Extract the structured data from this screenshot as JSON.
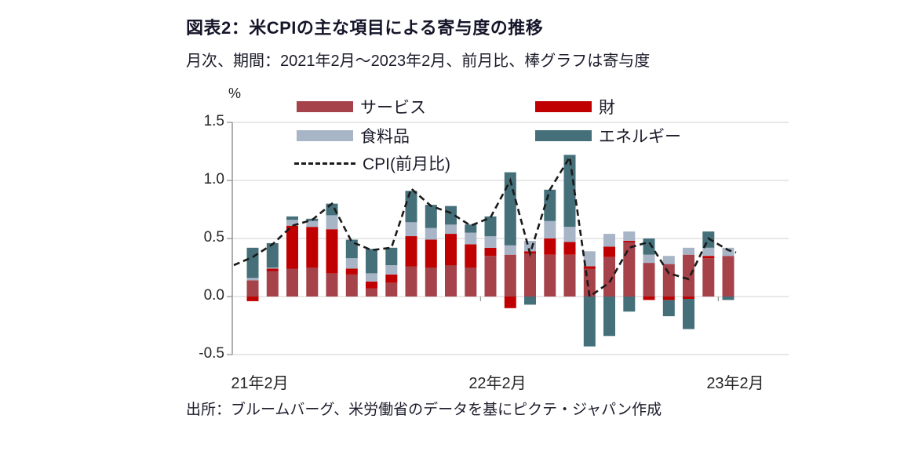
{
  "title": "図表2：米CPIの主な項目による寄与度の推移",
  "subtitle": "月次、期間：2021年2月～2023年2月、前月比、棒グラフは寄与度",
  "source": "出所：ブルームバーグ、米労働省のデータを基にピクテ・ジャパン作成",
  "y_axis_unit": "%",
  "legend": [
    {
      "id": "services",
      "label": "サービス",
      "color": "#a5424a",
      "style": "solid"
    },
    {
      "id": "goods",
      "label": "財",
      "color": "#c00000",
      "style": "solid"
    },
    {
      "id": "food",
      "label": "食料品",
      "color": "#a7b5c7",
      "style": "solid"
    },
    {
      "id": "energy",
      "label": "エネルギー",
      "color": "#45707a",
      "style": "solid"
    },
    {
      "id": "cpi",
      "label": "CPI(前月比)",
      "color": "#1a1a1a",
      "style": "dashed"
    }
  ],
  "chart_data": {
    "type": "bar",
    "subtype": "stacked-bars-with-dashed-line",
    "unit": "percentage points (contribution to US CPI m/m)",
    "title": "図表2：米CPIの主な項目による寄与度の推移",
    "xlabel": "",
    "ylabel": "%",
    "ylim": [
      -0.5,
      1.5
    ],
    "grid": true,
    "legend_position": "top",
    "categories": [
      "2021-02",
      "2021-03",
      "2021-04",
      "2021-05",
      "2021-06",
      "2021-07",
      "2021-08",
      "2021-09",
      "2021-10",
      "2021-11",
      "2021-12",
      "2022-01",
      "2022-02",
      "2022-03",
      "2022-04",
      "2022-05",
      "2022-06",
      "2022-07",
      "2022-08",
      "2022-09",
      "2022-10",
      "2022-11",
      "2022-12",
      "2023-01",
      "2023-02"
    ],
    "series": [
      {
        "id": "services",
        "name": "サービス",
        "color": "#a5424a",
        "values": [
          0.14,
          0.22,
          0.24,
          0.25,
          0.2,
          0.19,
          0.07,
          0.12,
          0.26,
          0.25,
          0.27,
          0.25,
          0.35,
          0.36,
          0.37,
          0.36,
          0.36,
          0.24,
          0.34,
          0.47,
          0.29,
          0.28,
          0.36,
          0.33,
          0.35
        ]
      },
      {
        "id": "goods",
        "name": "財",
        "color": "#c00000",
        "values": [
          -0.04,
          0.02,
          0.37,
          0.35,
          0.38,
          0.05,
          0.06,
          0.07,
          0.26,
          0.24,
          0.27,
          0.2,
          0.07,
          -0.1,
          0.02,
          0.14,
          0.11,
          0.02,
          0.09,
          0.01,
          -0.03,
          -0.03,
          -0.02,
          0.02,
          0.0
        ]
      },
      {
        "id": "food",
        "name": "食料品",
        "color": "#a7b5c7",
        "values": [
          0.02,
          0.01,
          0.05,
          0.05,
          0.12,
          0.09,
          0.07,
          0.08,
          0.12,
          0.1,
          0.08,
          0.1,
          0.1,
          0.08,
          0.09,
          0.15,
          0.13,
          0.13,
          0.11,
          0.08,
          0.07,
          0.07,
          0.06,
          0.07,
          0.07
        ]
      },
      {
        "id": "energy",
        "name": "エネルギー",
        "color": "#45707a",
        "values": [
          0.26,
          0.21,
          0.03,
          0.02,
          0.1,
          0.16,
          0.21,
          0.15,
          0.27,
          0.2,
          0.16,
          0.07,
          0.17,
          0.63,
          -0.07,
          0.27,
          0.62,
          -0.43,
          -0.34,
          -0.13,
          0.14,
          -0.14,
          -0.26,
          0.14,
          -0.03
        ]
      }
    ],
    "line": {
      "id": "cpi",
      "name": "CPI(前月比)",
      "color": "#1a1a1a",
      "dash": true,
      "values": [
        0.34,
        0.45,
        0.61,
        0.66,
        0.8,
        0.47,
        0.4,
        0.42,
        0.93,
        0.78,
        0.72,
        0.61,
        0.68,
        1.0,
        0.37,
        0.92,
        1.2,
        0.0,
        0.12,
        0.42,
        0.47,
        0.2,
        0.15,
        0.5,
        0.4
      ],
      "edge_start": 0.27,
      "edge_end": 0.38
    },
    "y_axis": {
      "min": -0.5,
      "max": 1.5,
      "ticks": [
        {
          "value": 1.5,
          "label": "1.5"
        },
        {
          "value": 1.0,
          "label": "1.0"
        },
        {
          "value": 0.5,
          "label": "0.5"
        },
        {
          "value": 0.0,
          "label": "0.0"
        },
        {
          "value": -0.5,
          "label": "-0.5"
        }
      ]
    },
    "x_axis": {
      "labels": [
        {
          "index": 0,
          "label": "21年2月"
        },
        {
          "index": 12,
          "label": "22年2月"
        },
        {
          "index": 24,
          "label": "23年2月"
        }
      ],
      "boundary_tick_positions": [
        11.5,
        23.5
      ]
    }
  }
}
